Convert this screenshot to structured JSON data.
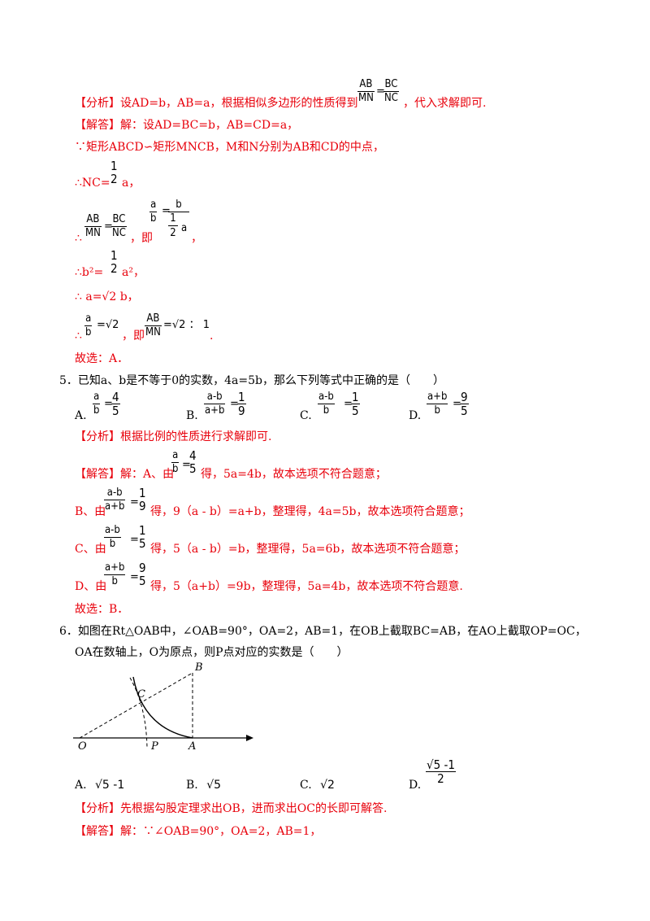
{
  "q4": {
    "analysis_tag": "【分析】",
    "analysis": "设AD=b，AB=a，根据相似多边形的性质得到",
    "analysis_end": "，代入求解即可.",
    "frac_ab": "AB",
    "frac_mn": "MN",
    "frac_bc": "BC",
    "frac_nc": "NC",
    "solution_tag": "【解答】",
    "solution_1": "解：设AD=BC=b，AB=CD=a，",
    "solution_2": "∵矩形ABCD∽矩形MNCB，M和N分别为AB和CD的中点，",
    "solution_3_pre": "∴NC=",
    "solution_3_post": "a，",
    "half_num": "1",
    "half_den": "2",
    "solution_4_pre": "∴",
    "solution_4_mid": "，即",
    "frac_a": "a",
    "frac_b": "b",
    "solution_5_pre": "∴b²=",
    "solution_5_post": "a²，",
    "solution_6": "∴ a=√2 b，",
    "solution_7_pre": "∴",
    "solution_7_val": "=√2",
    "solution_7_mid": "，即",
    "solution_7_ratio": "=√2 ： 1",
    "solution_7_end": ".",
    "choice": "故选：A．"
  },
  "q5": {
    "stem": "5．已知a、b是不等于0的实数，4a=5b，那么下列等式中正确的是（　　）",
    "options": [
      {
        "letter": "A.",
        "num": "a",
        "den": "b",
        "rhs_num": "4",
        "rhs_den": "5"
      },
      {
        "letter": "B.",
        "num": "a-b",
        "den": "a+b",
        "rhs_num": "1",
        "rhs_den": "9"
      },
      {
        "letter": "C.",
        "num": "a-b",
        "den": "b",
        "rhs_num": "1",
        "rhs_den": "5"
      },
      {
        "letter": "D.",
        "num": "a+b",
        "den": "b",
        "rhs_num": "9",
        "rhs_den": "5"
      }
    ],
    "analysis_tag": "【分析】",
    "analysis": "根据比例的性质进行求解即可.",
    "solution_tag": "【解答】",
    "sol_a_pre": "解：A、由",
    "sol_a_post": "得，5a=4b，故本选项不符合题意；",
    "sol_b_pre": "B、由",
    "sol_b_post": "得，9（a - b）=a+b，整理得，4a=5b，故本选项符合题意；",
    "sol_c_pre": "C、由",
    "sol_c_post": "得，5（a - b）=b，整理得，5a=6b，故本选项不符合题意；",
    "sol_d_pre": "D、由",
    "sol_d_post": "得，5（a+b）=9b，整理得，5a=4b，故本选项不符合题意.",
    "choice": "故选：B．"
  },
  "q6": {
    "stem_1": "6．如图在Rt△OAB中，∠OAB=90°，OA=2，AB=1，在OB上截取BC=AB，在AO上截取OP=OC，",
    "stem_2": "OA在数轴上，O为原点，则P点对应的实数是（　　）",
    "figure_labels": {
      "B": "B",
      "C": "C",
      "O": "O",
      "P": "P",
      "A": "A"
    },
    "options": [
      {
        "letter": "A.",
        "text": "√5 -1"
      },
      {
        "letter": "B.",
        "text": "√5"
      },
      {
        "letter": "C.",
        "text": "√2"
      },
      {
        "letter": "D.",
        "num": "√5 -1",
        "den": "2"
      }
    ],
    "analysis_tag": "【分析】",
    "analysis": "先根据勾股定理求出OB，进而求出OC的长即可解答.",
    "solution_tag": "【解答】",
    "solution_1": "解：∵∠OAB=90°，OA=2，AB=1，"
  }
}
